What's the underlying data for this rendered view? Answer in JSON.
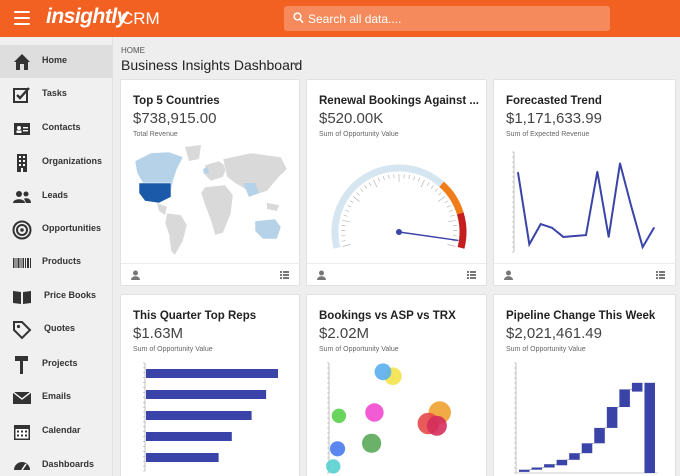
{
  "app": {
    "logo": "insightly",
    "name": "CRM",
    "search_placeholder": "Search all data....",
    "accent_color": "#f26022"
  },
  "sidebar": {
    "items": [
      {
        "label": "Home",
        "icon": "home-icon",
        "active": true
      },
      {
        "label": "Tasks",
        "icon": "tasks-icon"
      },
      {
        "label": "Contacts",
        "icon": "contacts-icon"
      },
      {
        "label": "Organizations",
        "icon": "organizations-icon"
      },
      {
        "label": "Leads",
        "icon": "leads-icon"
      },
      {
        "label": "Opportunities",
        "icon": "opportunities-icon"
      },
      {
        "label": "Products",
        "icon": "products-icon"
      },
      {
        "label": "Price Books",
        "icon": "price-books-icon"
      },
      {
        "label": "Quotes",
        "icon": "quotes-icon"
      },
      {
        "label": "Projects",
        "icon": "projects-icon"
      },
      {
        "label": "Emails",
        "icon": "emails-icon"
      },
      {
        "label": "Calendar",
        "icon": "calendar-icon"
      },
      {
        "label": "Dashboards",
        "icon": "dashboards-icon"
      }
    ]
  },
  "breadcrumb": "HOME",
  "dashboard_title": "Business Insights Dashboard",
  "cards": [
    {
      "title": "Top 5 Countries",
      "value": "$738,915.00",
      "subtitle": "Total Revenue"
    },
    {
      "title": "Renewal Bookings Against ...",
      "value": "$520.00K",
      "subtitle": "Sum of Opportunity Value"
    },
    {
      "title": "Forecasted Trend",
      "value": "$1,171,633.99",
      "subtitle": "Sum of Expected Revenue"
    },
    {
      "title": "This Quarter Top Reps",
      "value": "$1.63M",
      "subtitle": "Sum of Opportunity Value"
    },
    {
      "title": "Bookings vs ASP vs TRX",
      "value": "$2.02M",
      "subtitle": "Sum of Opportunity Value"
    },
    {
      "title": "Pipeline Change This Week",
      "value": "$2,021,461.49",
      "subtitle": "Sum of Opportunity Value"
    }
  ],
  "chart_data": [
    {
      "type": "gauge",
      "value_fraction": 0.97,
      "bands": [
        {
          "from": 0.0,
          "to": 0.7,
          "color": "#d6e6f0"
        },
        {
          "from": 0.7,
          "to": 0.85,
          "color": "#f07d1a"
        },
        {
          "from": 0.85,
          "to": 1.0,
          "color": "#c41e1e"
        }
      ]
    },
    {
      "type": "line",
      "values": [
        0.82,
        0.04,
        0.26,
        0.22,
        0.12,
        0.13,
        0.14,
        0.83,
        0.12,
        0.92,
        0.45,
        0.01,
        0.22
      ],
      "color": "#3a44a8"
    },
    {
      "type": "bar",
      "orientation": "horizontal",
      "values": [
        1.0,
        0.91,
        0.8,
        0.65,
        0.55
      ],
      "color": "#3a44a8"
    },
    {
      "type": "scatter",
      "points": [
        {
          "x": 0.45,
          "y": 0.88,
          "r": 0.6,
          "color": "#f2e34a"
        },
        {
          "x": 0.38,
          "y": 0.92,
          "r": 0.55,
          "color": "#5aaef0"
        },
        {
          "x": 0.32,
          "y": 0.55,
          "r": 0.65,
          "color": "#f04ad0"
        },
        {
          "x": 0.78,
          "y": 0.55,
          "r": 0.9,
          "color": "#f0a230"
        },
        {
          "x": 0.7,
          "y": 0.45,
          "r": 0.85,
          "color": "#e84848"
        },
        {
          "x": 0.76,
          "y": 0.43,
          "r": 0.75,
          "color": "#d42e5c"
        },
        {
          "x": 0.07,
          "y": 0.52,
          "r": 0.4,
          "color": "#5ad04a"
        },
        {
          "x": 0.3,
          "y": 0.27,
          "r": 0.7,
          "color": "#5aa85a"
        },
        {
          "x": 0.06,
          "y": 0.22,
          "r": 0.45,
          "color": "#4a7af0"
        },
        {
          "x": 0.03,
          "y": 0.06,
          "r": 0.4,
          "color": "#5ad0d0"
        }
      ]
    },
    {
      "type": "waterfall",
      "color": "#3a44a8",
      "bars": [
        {
          "from": 0.01,
          "to": 0.03
        },
        {
          "from": 0.03,
          "to": 0.05
        },
        {
          "from": 0.05,
          "to": 0.08
        },
        {
          "from": 0.07,
          "to": 0.12
        },
        {
          "from": 0.12,
          "to": 0.18
        },
        {
          "from": 0.18,
          "to": 0.27
        },
        {
          "from": 0.27,
          "to": 0.41
        },
        {
          "from": 0.41,
          "to": 0.6
        },
        {
          "from": 0.6,
          "to": 0.76
        },
        {
          "from": 0.74,
          "to": 0.82
        },
        {
          "from": 0.0,
          "to": 0.82
        }
      ]
    }
  ]
}
